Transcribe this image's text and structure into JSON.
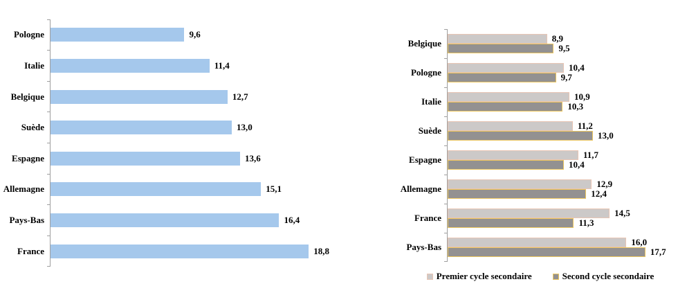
{
  "chart_data": [
    {
      "type": "bar",
      "orientation": "horizontal",
      "title": "",
      "categories": [
        "Pologne",
        "Italie",
        "Belgique",
        "Suède",
        "Espagne",
        "Allemagne",
        "Pays-Bas",
        "France"
      ],
      "values": [
        9.6,
        11.4,
        12.7,
        13.0,
        13.6,
        15.1,
        16.4,
        18.8
      ],
      "value_labels": [
        "9,6",
        "11,4",
        "12,7",
        "13,0",
        "13,6",
        "15,1",
        "16,4",
        "18,8"
      ],
      "xlim": [
        0,
        20
      ],
      "grid": false,
      "legend": null,
      "bar_color": "#a5c8ec",
      "axis_color": "#9e9e9e"
    },
    {
      "type": "bar",
      "orientation": "horizontal",
      "title": "",
      "categories": [
        "Belgique",
        "Pologne",
        "Italie",
        "Suède",
        "Espagne",
        "Allemagne",
        "France",
        "Pays-Bas"
      ],
      "series": [
        {
          "name": "Premier cycle secondaire",
          "values": [
            8.9,
            10.4,
            10.9,
            11.2,
            11.7,
            12.9,
            14.5,
            16.0
          ],
          "value_labels": [
            "8,9",
            "10,4",
            "10,9",
            "11,2",
            "11,7",
            "12,9",
            "14,5",
            "16,0"
          ],
          "fill": "#ccc9c8",
          "border": "#e8c5b4"
        },
        {
          "name": "Second cycle secondaire",
          "values": [
            9.5,
            9.7,
            10.3,
            13.0,
            10.4,
            12.4,
            11.3,
            17.7
          ],
          "value_labels": [
            "9,5",
            "9,7",
            "10,3",
            "13,0",
            "10,4",
            "12,4",
            "11,3",
            "17,7"
          ],
          "fill": "#939191",
          "border": "#ecc65f"
        }
      ],
      "xlim": [
        0,
        20
      ],
      "grid": false,
      "legend_position": "bottom",
      "axis_color": "#9e9e9e"
    }
  ]
}
